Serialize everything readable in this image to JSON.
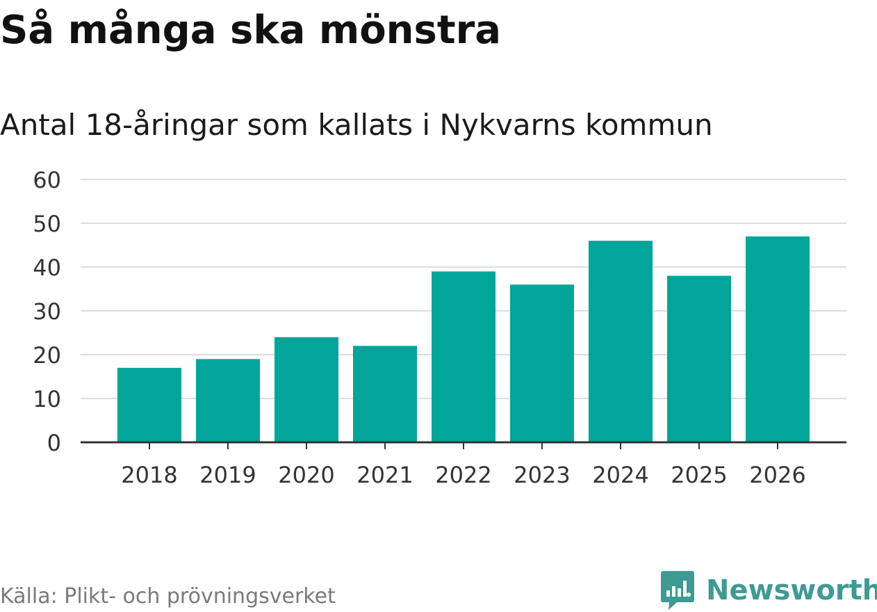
{
  "title": "Så många ska mönstra",
  "subtitle": "Antal 18-åringar som kallats i Nykvarns kommun",
  "source": "Källa: Plikt- och prövningsverket",
  "logo": {
    "text": "Newsworthy",
    "icon": "newsworthy-logo-icon"
  },
  "colors": {
    "bar": "#02a59a",
    "grid": "#dddddd",
    "axis": "#333333",
    "logo": "#3e9b93"
  },
  "chart_data": {
    "type": "bar",
    "categories": [
      "2018",
      "2019",
      "2020",
      "2021",
      "2022",
      "2023",
      "2024",
      "2025",
      "2026"
    ],
    "values": [
      17,
      19,
      24,
      22,
      39,
      36,
      46,
      38,
      47
    ],
    "ylim": [
      0,
      60
    ],
    "yticks": [
      "0",
      "10",
      "20",
      "30",
      "40",
      "50",
      "60"
    ],
    "grid": true,
    "legend": "none"
  }
}
